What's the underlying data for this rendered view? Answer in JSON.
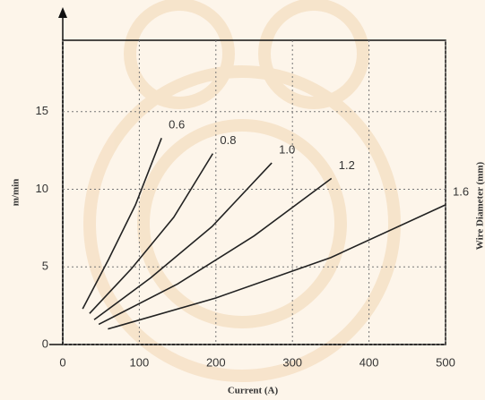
{
  "chart_data": {
    "type": "line",
    "x_label": "Current (A)",
    "y_label": "m/min",
    "annotation": "Wire Diameter (mm)",
    "xlim": [
      0,
      500
    ],
    "ylim": [
      0,
      19.6
    ],
    "xticks": [
      0,
      100,
      200,
      300,
      400,
      500
    ],
    "yticks": [
      0,
      5,
      10,
      15
    ],
    "grid": true,
    "series": [
      {
        "name": "0.6",
        "color": "#222222",
        "x": [
          26,
          60,
          95,
          129
        ],
        "values": [
          2.3,
          5.5,
          9.0,
          13.3
        ]
      },
      {
        "name": "0.8",
        "color": "#222222",
        "x": [
          35,
          90,
          145,
          196
        ],
        "values": [
          2.0,
          4.9,
          8.2,
          12.3
        ]
      },
      {
        "name": "1.0",
        "color": "#222222",
        "x": [
          41,
          115,
          195,
          273
        ],
        "values": [
          1.6,
          4.3,
          7.6,
          11.7
        ]
      },
      {
        "name": "1.2",
        "color": "#222222",
        "x": [
          47,
          150,
          250,
          351
        ],
        "values": [
          1.3,
          3.9,
          7.0,
          10.7
        ]
      },
      {
        "name": "1.6",
        "color": "#222222",
        "x": [
          59,
          200,
          350,
          500
        ],
        "values": [
          1.0,
          3.0,
          5.6,
          9.0
        ]
      }
    ]
  }
}
